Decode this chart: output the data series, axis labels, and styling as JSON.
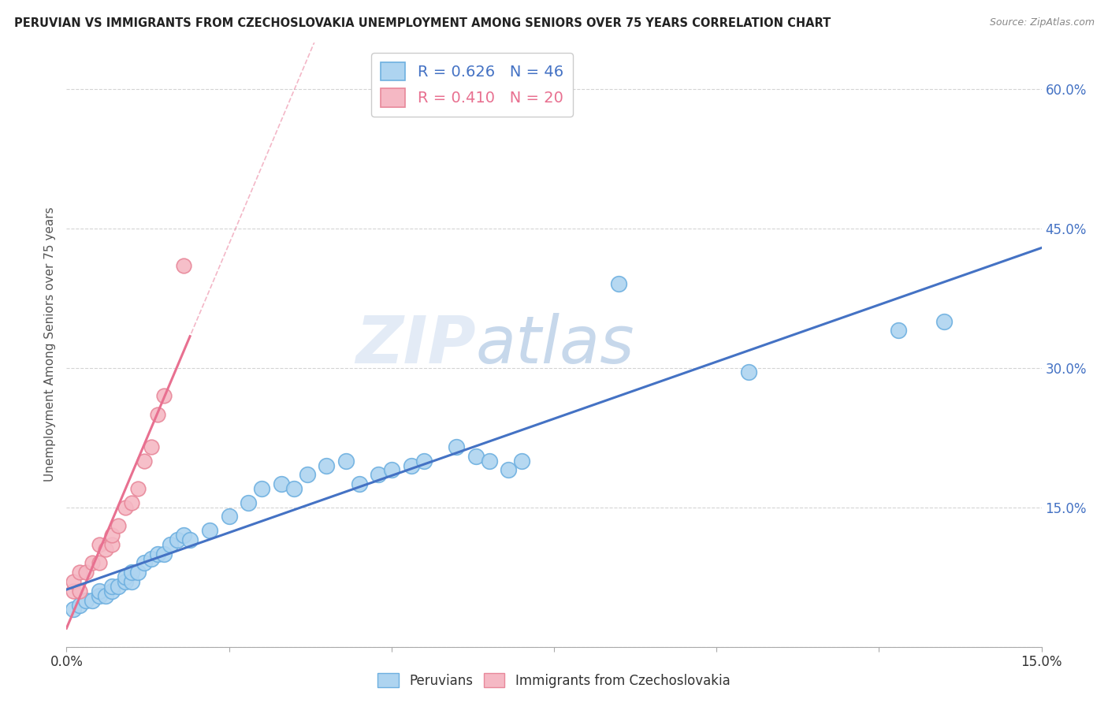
{
  "title": "PERUVIAN VS IMMIGRANTS FROM CZECHOSLOVAKIA UNEMPLOYMENT AMONG SENIORS OVER 75 YEARS CORRELATION CHART",
  "source": "Source: ZipAtlas.com",
  "ylabel": "Unemployment Among Seniors over 75 years",
  "xlim": [
    0.0,
    0.15
  ],
  "ylim": [
    0.0,
    0.65
  ],
  "peruvians_R": 0.626,
  "peruvians_N": 46,
  "czech_R": 0.41,
  "czech_N": 20,
  "peruvians_color": "#AED4F0",
  "peruvians_edge_color": "#6EB0E0",
  "czech_color": "#F5B8C4",
  "czech_edge_color": "#E8889A",
  "peruvians_line_color": "#4472C4",
  "czech_line_color": "#E87090",
  "watermark_color": "#C5D8F0",
  "background_color": "#ffffff",
  "grid_color": "#d0d0d0",
  "right_tick_color": "#4472C4",
  "peruvians_x": [
    0.001,
    0.002,
    0.003,
    0.004,
    0.005,
    0.005,
    0.006,
    0.007,
    0.007,
    0.008,
    0.009,
    0.009,
    0.01,
    0.01,
    0.011,
    0.012,
    0.013,
    0.014,
    0.015,
    0.016,
    0.017,
    0.018,
    0.019,
    0.022,
    0.025,
    0.028,
    0.03,
    0.033,
    0.035,
    0.037,
    0.04,
    0.043,
    0.045,
    0.048,
    0.05,
    0.053,
    0.055,
    0.06,
    0.063,
    0.065,
    0.068,
    0.07,
    0.085,
    0.105,
    0.128,
    0.135
  ],
  "peruvians_y": [
    0.04,
    0.045,
    0.05,
    0.05,
    0.055,
    0.06,
    0.055,
    0.06,
    0.065,
    0.065,
    0.07,
    0.075,
    0.07,
    0.08,
    0.08,
    0.09,
    0.095,
    0.1,
    0.1,
    0.11,
    0.115,
    0.12,
    0.115,
    0.125,
    0.14,
    0.155,
    0.17,
    0.175,
    0.17,
    0.185,
    0.195,
    0.2,
    0.175,
    0.185,
    0.19,
    0.195,
    0.2,
    0.215,
    0.205,
    0.2,
    0.19,
    0.2,
    0.39,
    0.295,
    0.34,
    0.35
  ],
  "czech_x": [
    0.001,
    0.001,
    0.002,
    0.002,
    0.003,
    0.004,
    0.005,
    0.005,
    0.006,
    0.007,
    0.007,
    0.008,
    0.009,
    0.01,
    0.011,
    0.012,
    0.013,
    0.014,
    0.015,
    0.018
  ],
  "czech_y": [
    0.06,
    0.07,
    0.06,
    0.08,
    0.08,
    0.09,
    0.09,
    0.11,
    0.105,
    0.11,
    0.12,
    0.13,
    0.15,
    0.155,
    0.17,
    0.2,
    0.215,
    0.25,
    0.27,
    0.41
  ]
}
